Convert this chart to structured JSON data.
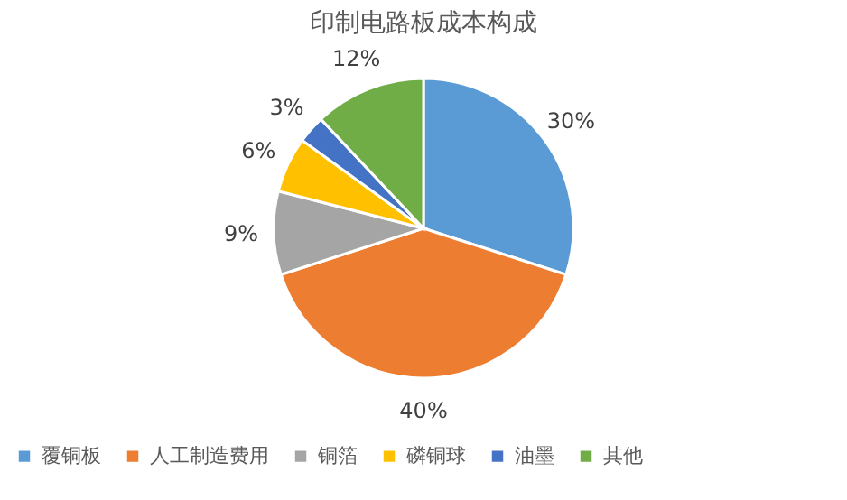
{
  "chart_data": {
    "type": "pie",
    "title": "印制电路板成本构成",
    "categories": [
      "覆铜板",
      "人工制造费用",
      "铜箔",
      "磷铜球",
      "油墨",
      "其他"
    ],
    "values": [
      30,
      40,
      9,
      6,
      3,
      12
    ],
    "colors": [
      "#5b9bd5",
      "#ed7d31",
      "#a5a5a5",
      "#ffc000",
      "#4472c4",
      "#70ad47"
    ],
    "value_labels": [
      "30%",
      "40%",
      "9%",
      "6%",
      "3%",
      "12%"
    ],
    "legend": "bottom"
  }
}
